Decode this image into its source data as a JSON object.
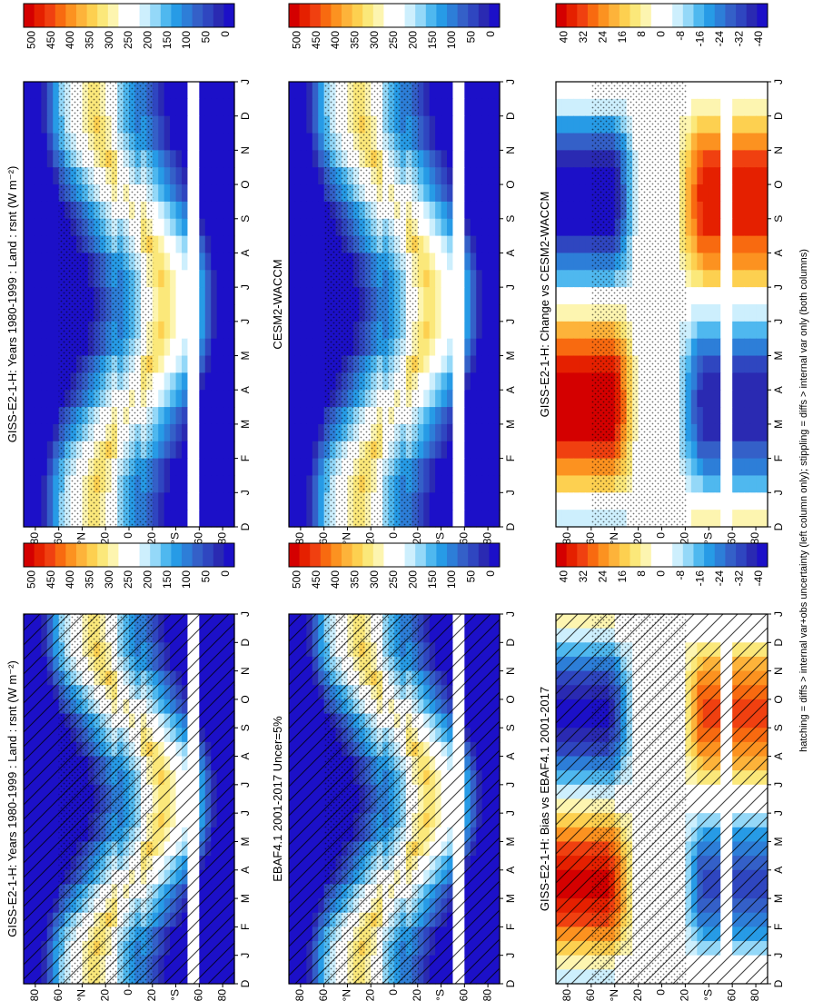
{
  "footnote": "hatching = diffs > internal var+obs uncertainty (left column only); stippling = diffs > internal var only (both columns)",
  "chart_data": [
    {
      "type": "heatmap",
      "title": "GISS-E2-1-H: Years 1980-1999 : Land : rsnt (W m⁻²)",
      "months": [
        "D",
        "J",
        "F",
        "M",
        "A",
        "M",
        "J",
        "J",
        "A",
        "S",
        "O",
        "N",
        "D",
        "J"
      ],
      "lat_ticks": [
        "80",
        "60",
        "°N",
        "20",
        "0",
        "20",
        "°S",
        "60",
        "80"
      ],
      "lat_values": [
        80,
        60,
        40,
        20,
        0,
        -20,
        -40,
        -60,
        -80
      ],
      "colorbar_ticks": [
        "500",
        "450",
        "400",
        "350",
        "300",
        "250",
        "200",
        "150",
        "100",
        "50",
        "0"
      ],
      "range": [
        0,
        500
      ],
      "hatching": true,
      "stippling": true,
      "field": "clim"
    },
    {
      "type": "heatmap",
      "title": "EBAF4.1 2001-2017 Uncer=5%",
      "months": [
        "D",
        "J",
        "F",
        "M",
        "A",
        "M",
        "J",
        "J",
        "A",
        "S",
        "O",
        "N",
        "D",
        "J"
      ],
      "lat_ticks": [
        "80",
        "60",
        "°N",
        "20",
        "0",
        "20",
        "°S",
        "60",
        "80"
      ],
      "lat_values": [
        80,
        60,
        40,
        20,
        0,
        -20,
        -40,
        -60,
        -80
      ],
      "colorbar_ticks": [
        "500",
        "450",
        "400",
        "350",
        "300",
        "250",
        "200",
        "150",
        "100",
        "50",
        "0"
      ],
      "range": [
        0,
        500
      ],
      "hatching": true,
      "stippling": true,
      "field": "clim"
    },
    {
      "type": "heatmap",
      "title": "GISS-E2-1-H: Bias vs EBAF4.1 2001-2017",
      "months": [
        "D",
        "J",
        "F",
        "M",
        "A",
        "M",
        "J",
        "J",
        "A",
        "S",
        "O",
        "N",
        "D",
        "J"
      ],
      "lat_ticks": [
        "80",
        "60",
        "°N",
        "20",
        "0",
        "20",
        "°S",
        "60",
        "80"
      ],
      "lat_values": [
        80,
        60,
        40,
        20,
        0,
        -20,
        -40,
        -60,
        -80
      ],
      "colorbar_ticks": [
        "40",
        "32",
        "24",
        "16",
        "8",
        "0",
        "-8",
        "-16",
        "-24",
        "-32",
        "-40"
      ],
      "range": [
        -40,
        40
      ],
      "hatching": true,
      "stippling": true,
      "field": "bias"
    },
    {
      "type": "heatmap",
      "title": "GISS-E2-1-H: Years 1980-1999 : Land : rsnt (W m⁻²)",
      "months": [
        "D",
        "J",
        "F",
        "M",
        "A",
        "M",
        "J",
        "J",
        "A",
        "S",
        "O",
        "N",
        "D",
        "J"
      ],
      "lat_ticks": [
        "80",
        "60",
        "°N",
        "20",
        "0",
        "20",
        "°S",
        "60",
        "80"
      ],
      "lat_values": [
        80,
        60,
        40,
        20,
        0,
        -20,
        -40,
        -60,
        -80
      ],
      "colorbar_ticks": [
        "500",
        "450",
        "400",
        "350",
        "300",
        "250",
        "200",
        "150",
        "100",
        "50",
        "0"
      ],
      "range": [
        0,
        500
      ],
      "hatching": false,
      "stippling": true,
      "field": "clim"
    },
    {
      "type": "heatmap",
      "title": "CESM2-WACCM",
      "months": [
        "D",
        "J",
        "F",
        "M",
        "A",
        "M",
        "J",
        "J",
        "A",
        "S",
        "O",
        "N",
        "D",
        "J"
      ],
      "lat_ticks": [
        "80",
        "60",
        "°N",
        "20",
        "0",
        "20",
        "°S",
        "60",
        "80"
      ],
      "lat_values": [
        80,
        60,
        40,
        20,
        0,
        -20,
        -40,
        -60,
        -80
      ],
      "colorbar_ticks": [
        "500",
        "450",
        "400",
        "350",
        "300",
        "250",
        "200",
        "150",
        "100",
        "50",
        "0"
      ],
      "range": [
        0,
        500
      ],
      "hatching": false,
      "stippling": true,
      "field": "clim"
    },
    {
      "type": "heatmap",
      "title": "GISS-E2-1-H: Change vs CESM2-WACCM",
      "months": [
        "D",
        "J",
        "F",
        "M",
        "A",
        "M",
        "J",
        "J",
        "A",
        "S",
        "O",
        "N",
        "D",
        "J"
      ],
      "lat_ticks": [
        "80",
        "60",
        "°N",
        "20",
        "0",
        "20",
        "°S",
        "60",
        "80"
      ],
      "lat_values": [
        80,
        60,
        40,
        20,
        0,
        -20,
        -40,
        -60,
        -80
      ],
      "colorbar_ticks": [
        "40",
        "32",
        "24",
        "16",
        "8",
        "0",
        "-8",
        "-16",
        "-24",
        "-32",
        "-40"
      ],
      "range": [
        -40,
        40
      ],
      "hatching": false,
      "stippling": true,
      "field": "change"
    }
  ]
}
